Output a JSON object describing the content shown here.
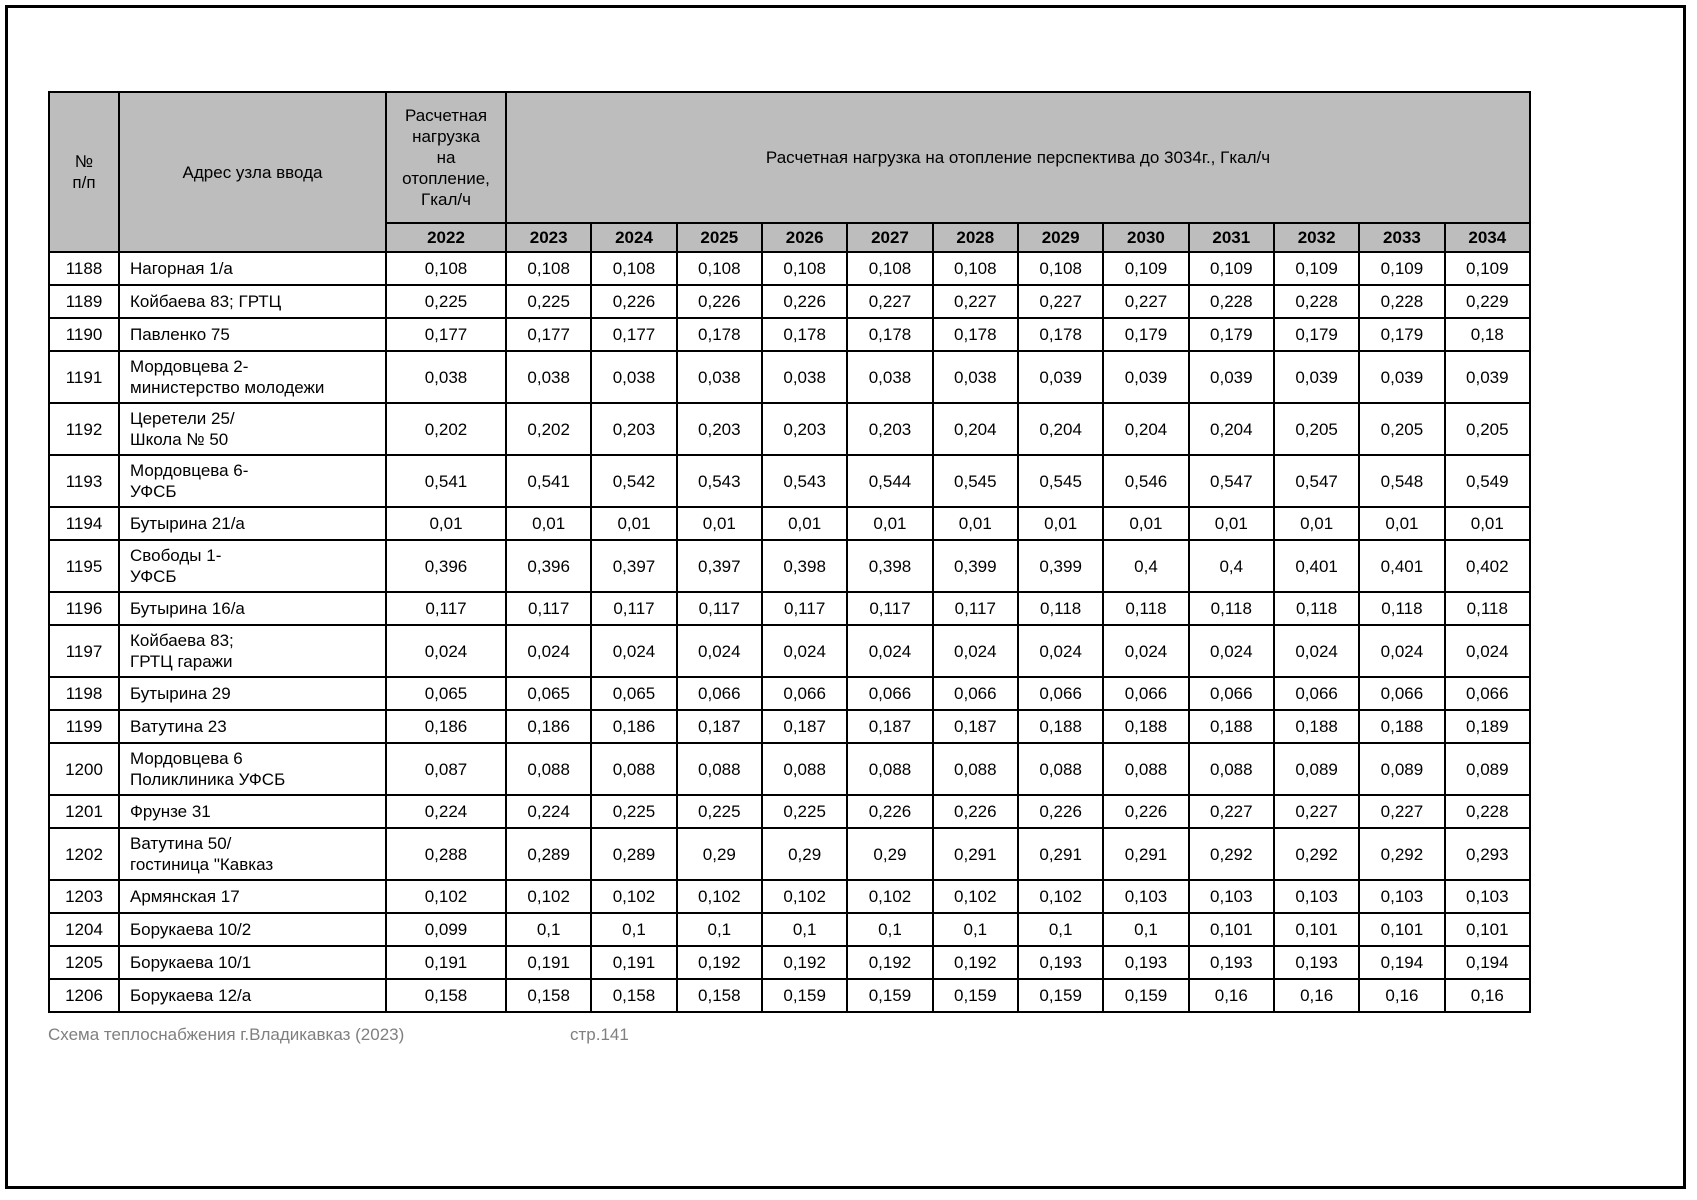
{
  "table": {
    "header": {
      "num": "№\nп/п",
      "address": "Адрес узла ввода",
      "load2022": "Расчетная\nнагрузка\nна\nотопление,\nГкал/ч",
      "perspective": "Расчетная нагрузка на отопление перспектива до 3034г., Гкал/ч",
      "years": [
        "2022",
        "2023",
        "2024",
        "2025",
        "2026",
        "2027",
        "2028",
        "2029",
        "2030",
        "2031",
        "2032",
        "2033",
        "2034"
      ]
    },
    "rows": [
      {
        "num": "1188",
        "address": "Нагорная 1/а",
        "values": [
          "0,108",
          "0,108",
          "0,108",
          "0,108",
          "0,108",
          "0,108",
          "0,108",
          "0,108",
          "0,109",
          "0,109",
          "0,109",
          "0,109",
          "0,109"
        ]
      },
      {
        "num": "1189",
        "address": "Койбаева 83; ГРТЦ",
        "values": [
          "0,225",
          "0,225",
          "0,226",
          "0,226",
          "0,226",
          "0,227",
          "0,227",
          "0,227",
          "0,227",
          "0,228",
          "0,228",
          "0,228",
          "0,229"
        ]
      },
      {
        "num": "1190",
        "address": "Павленко 75",
        "values": [
          "0,177",
          "0,177",
          "0,177",
          "0,178",
          "0,178",
          "0,178",
          "0,178",
          "0,178",
          "0,179",
          "0,179",
          "0,179",
          "0,179",
          "0,18"
        ]
      },
      {
        "num": "1191",
        "address": "Мордовцева 2-\nминистерство молодежи",
        "values": [
          "0,038",
          "0,038",
          "0,038",
          "0,038",
          "0,038",
          "0,038",
          "0,038",
          "0,039",
          "0,039",
          "0,039",
          "0,039",
          "0,039",
          "0,039"
        ]
      },
      {
        "num": "1192",
        "address": "Церетели 25/\nШкола № 50",
        "values": [
          "0,202",
          "0,202",
          "0,203",
          "0,203",
          "0,203",
          "0,203",
          "0,204",
          "0,204",
          "0,204",
          "0,204",
          "0,205",
          "0,205",
          "0,205"
        ]
      },
      {
        "num": "1193",
        "address": "Мордовцева 6-\nУФСБ",
        "values": [
          "0,541",
          "0,541",
          "0,542",
          "0,543",
          "0,543",
          "0,544",
          "0,545",
          "0,545",
          "0,546",
          "0,547",
          "0,547",
          "0,548",
          "0,549"
        ]
      },
      {
        "num": "1194",
        "address": "Бутырина 21/а",
        "values": [
          "0,01",
          "0,01",
          "0,01",
          "0,01",
          "0,01",
          "0,01",
          "0,01",
          "0,01",
          "0,01",
          "0,01",
          "0,01",
          "0,01",
          "0,01"
        ]
      },
      {
        "num": "1195",
        "address": "Свободы 1-\nУФСБ",
        "values": [
          "0,396",
          "0,396",
          "0,397",
          "0,397",
          "0,398",
          "0,398",
          "0,399",
          "0,399",
          "0,4",
          "0,4",
          "0,401",
          "0,401",
          "0,402"
        ]
      },
      {
        "num": "1196",
        "address": "Бутырина 16/а",
        "values": [
          "0,117",
          "0,117",
          "0,117",
          "0,117",
          "0,117",
          "0,117",
          "0,117",
          "0,118",
          "0,118",
          "0,118",
          "0,118",
          "0,118",
          "0,118"
        ]
      },
      {
        "num": "1197",
        "address": "Койбаева 83;\nГРТЦ гаражи",
        "values": [
          "0,024",
          "0,024",
          "0,024",
          "0,024",
          "0,024",
          "0,024",
          "0,024",
          "0,024",
          "0,024",
          "0,024",
          "0,024",
          "0,024",
          "0,024"
        ]
      },
      {
        "num": "1198",
        "address": "Бутырина 29",
        "values": [
          "0,065",
          "0,065",
          "0,065",
          "0,066",
          "0,066",
          "0,066",
          "0,066",
          "0,066",
          "0,066",
          "0,066",
          "0,066",
          "0,066",
          "0,066"
        ]
      },
      {
        "num": "1199",
        "address": "Ватутина 23",
        "values": [
          "0,186",
          "0,186",
          "0,186",
          "0,187",
          "0,187",
          "0,187",
          "0,187",
          "0,188",
          "0,188",
          "0,188",
          "0,188",
          "0,188",
          "0,189"
        ]
      },
      {
        "num": "1200",
        "address": "Мордовцева 6\nПоликлиника УФСБ",
        "values": [
          "0,087",
          "0,088",
          "0,088",
          "0,088",
          "0,088",
          "0,088",
          "0,088",
          "0,088",
          "0,088",
          "0,088",
          "0,089",
          "0,089",
          "0,089"
        ]
      },
      {
        "num": "1201",
        "address": "Фрунзе 31",
        "values": [
          "0,224",
          "0,224",
          "0,225",
          "0,225",
          "0,225",
          "0,226",
          "0,226",
          "0,226",
          "0,226",
          "0,227",
          "0,227",
          "0,227",
          "0,228"
        ]
      },
      {
        "num": "1202",
        "address": "Ватутина 50/\nгостиница \"Кавказ",
        "values": [
          "0,288",
          "0,289",
          "0,289",
          "0,29",
          "0,29",
          "0,29",
          "0,291",
          "0,291",
          "0,291",
          "0,292",
          "0,292",
          "0,292",
          "0,293"
        ]
      },
      {
        "num": "1203",
        "address": "Армянская 17",
        "values": [
          "0,102",
          "0,102",
          "0,102",
          "0,102",
          "0,102",
          "0,102",
          "0,102",
          "0,102",
          "0,103",
          "0,103",
          "0,103",
          "0,103",
          "0,103"
        ]
      },
      {
        "num": "1204",
        "address": "Борукаева 10/2",
        "values": [
          "0,099",
          "0,1",
          "0,1",
          "0,1",
          "0,1",
          "0,1",
          "0,1",
          "0,1",
          "0,1",
          "0,101",
          "0,101",
          "0,101",
          "0,101"
        ]
      },
      {
        "num": "1205",
        "address": "Борукаева 10/1",
        "values": [
          "0,191",
          "0,191",
          "0,191",
          "0,192",
          "0,192",
          "0,192",
          "0,192",
          "0,193",
          "0,193",
          "0,193",
          "0,193",
          "0,194",
          "0,194"
        ]
      },
      {
        "num": "1206",
        "address": "Борукаева 12/а",
        "values": [
          "0,158",
          "0,158",
          "0,158",
          "0,158",
          "0,159",
          "0,159",
          "0,159",
          "0,159",
          "0,159",
          "0,16",
          "0,16",
          "0,16",
          "0,16"
        ]
      }
    ]
  },
  "footer": {
    "left": "Схема теплоснабжения г.Владикавказ (2023)",
    "page": "стр.141"
  }
}
